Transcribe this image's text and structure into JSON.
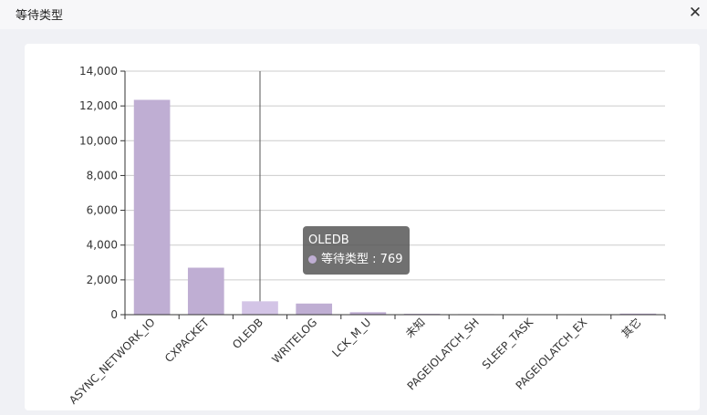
{
  "header": {
    "title": "等待类型",
    "close_label": "✕"
  },
  "chart_data": {
    "type": "bar",
    "categories": [
      "ASYNC_NETWORK_IO",
      "CXPACKET",
      "OLEDB",
      "WRITELOG",
      "LCK_M_U",
      "未知",
      "PAGEIOLATCH_SH",
      "SLEEP_TASK",
      "PAGEIOLATCH_EX",
      "其它"
    ],
    "series": [
      {
        "name": "等待类型",
        "values": [
          12350,
          2700,
          769,
          640,
          140,
          50,
          30,
          25,
          15,
          60
        ]
      }
    ],
    "ylim": [
      0,
      14000
    ],
    "yticks": [
      0,
      2000,
      4000,
      6000,
      8000,
      10000,
      12000,
      14000
    ],
    "ytick_labels": [
      "0",
      "2,000",
      "4,000",
      "6,000",
      "8,000",
      "10,000",
      "12,000",
      "14,000"
    ],
    "grid": true,
    "colors": {
      "bar": "#bfaed3",
      "highlight": "#d3c4e6",
      "axis": "#333333",
      "grid": "#cccccc"
    },
    "highlighted_category": "OLEDB",
    "tooltip": {
      "title": "OLEDB",
      "series_name": "等待类型",
      "separator": " : ",
      "value": "769"
    }
  }
}
